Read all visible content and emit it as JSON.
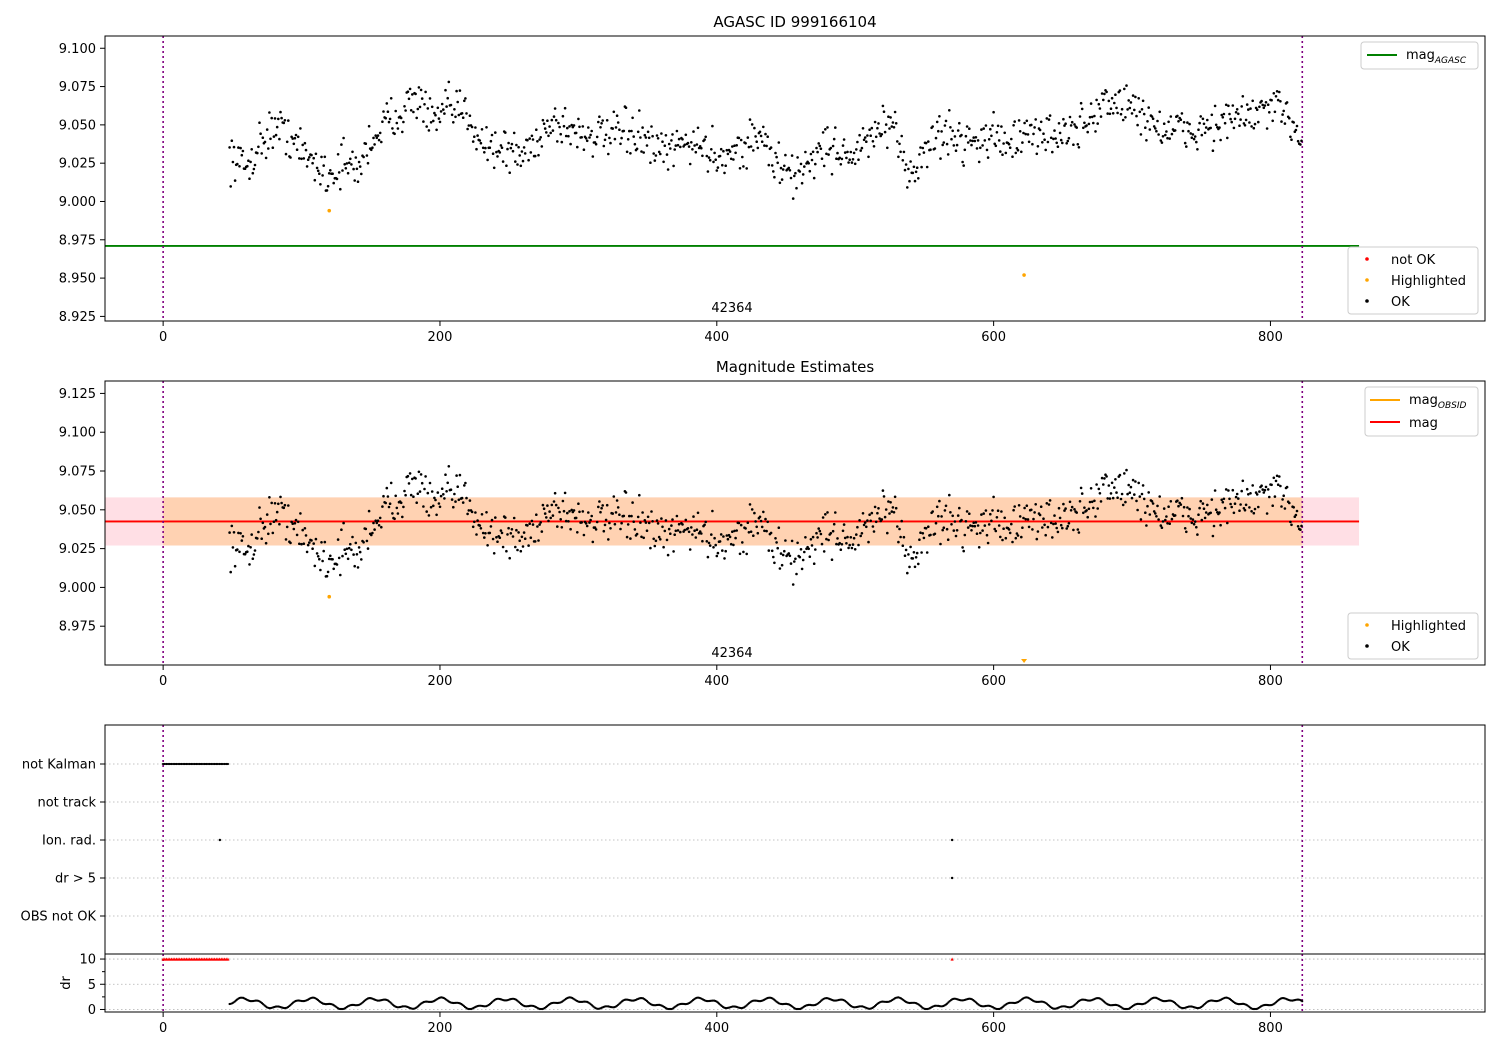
{
  "figure": {
    "ticks_x": [
      0,
      200,
      400,
      600,
      800
    ],
    "xlim": [
      -42,
      955
    ],
    "obs_start": 0,
    "obs_end": 823,
    "marker_color": "#800080"
  },
  "chart_data": [
    {
      "type": "scatter",
      "title": "AGASC ID 999166104",
      "ylim": [
        8.922,
        9.108
      ],
      "yticks": [
        "9.100",
        "9.075",
        "9.050",
        "9.025",
        "9.000",
        "8.975",
        "8.950",
        "8.925"
      ],
      "obsid_label": "42364",
      "agasc_mag": 8.971,
      "legend_lines": [
        {
          "label": "mag",
          "sub": "AGASC",
          "color": "#008000"
        }
      ],
      "legend_points": [
        {
          "label": "not OK",
          "color": "#ff0000"
        },
        {
          "label": "Highlighted",
          "color": "#ffa500"
        },
        {
          "label": "OK",
          "color": "#000000"
        }
      ],
      "highlighted": [
        {
          "x": 120,
          "y": 8.994
        },
        {
          "x": 622,
          "y": 8.952
        }
      ],
      "trend": [
        [
          48,
          9.03
        ],
        [
          60,
          9.022
        ],
        [
          70,
          9.038
        ],
        [
          80,
          9.048
        ],
        [
          90,
          9.045
        ],
        [
          100,
          9.032
        ],
        [
          110,
          9.025
        ],
        [
          120,
          9.017
        ],
        [
          130,
          9.025
        ],
        [
          140,
          9.02
        ],
        [
          150,
          9.04
        ],
        [
          160,
          9.05
        ],
        [
          175,
          9.062
        ],
        [
          185,
          9.068
        ],
        [
          195,
          9.05
        ],
        [
          205,
          9.06
        ],
        [
          220,
          9.058
        ],
        [
          230,
          9.04
        ],
        [
          240,
          9.035
        ],
        [
          260,
          9.03
        ],
        [
          280,
          9.052
        ],
        [
          300,
          9.045
        ],
        [
          320,
          9.042
        ],
        [
          340,
          9.045
        ],
        [
          360,
          9.03
        ],
        [
          380,
          9.04
        ],
        [
          400,
          9.03
        ],
        [
          420,
          9.035
        ],
        [
          430,
          9.045
        ],
        [
          440,
          9.028
        ],
        [
          455,
          9.015
        ],
        [
          470,
          9.03
        ],
        [
          480,
          9.036
        ],
        [
          500,
          9.03
        ],
        [
          520,
          9.05
        ],
        [
          530,
          9.04
        ],
        [
          540,
          9.018
        ],
        [
          560,
          9.045
        ],
        [
          580,
          9.04
        ],
        [
          600,
          9.042
        ],
        [
          620,
          9.04
        ],
        [
          640,
          9.045
        ],
        [
          660,
          9.045
        ],
        [
          680,
          9.065
        ],
        [
          700,
          9.062
        ],
        [
          710,
          9.055
        ],
        [
          720,
          9.048
        ],
        [
          740,
          9.045
        ],
        [
          760,
          9.05
        ],
        [
          780,
          9.055
        ],
        [
          800,
          9.06
        ],
        [
          815,
          9.055
        ],
        [
          823,
          9.038
        ]
      ]
    },
    {
      "type": "scatter",
      "title": "Magnitude Estimates",
      "ylim": [
        8.95,
        9.133
      ],
      "yticks": [
        "9.125",
        "9.100",
        "9.075",
        "9.050",
        "9.025",
        "9.000",
        "8.975"
      ],
      "obsid_label": "42364",
      "mag": 9.0425,
      "mag_obsid": 9.0425,
      "band_outer": [
        9.027,
        9.058
      ],
      "band_inner": [
        9.027,
        9.058
      ],
      "legend_lines": [
        {
          "label": "mag",
          "sub": "OBSID",
          "color": "#ffa500"
        },
        {
          "label": "mag",
          "sub": "",
          "color": "#ff0000"
        }
      ],
      "legend_points": [
        {
          "label": "Highlighted",
          "color": "#ffa500"
        },
        {
          "label": "OK",
          "color": "#000000"
        }
      ],
      "highlighted": [
        {
          "x": 120,
          "y": 8.994
        },
        {
          "x": 622,
          "y": 8.952,
          "arrow": true
        }
      ]
    },
    {
      "type": "scatter",
      "categories": [
        "not Kalman",
        "not track",
        "Ion. rad.",
        "dr > 5",
        "OBS not OK"
      ],
      "flags": {
        "not Kalman_range": [
          0,
          47
        ],
        "Ion. rad._points": [
          41,
          570
        ],
        "dr > 5_points": [
          570
        ]
      },
      "dr": {
        "ylabel": "dr",
        "ylim": [
          -0.5,
          11
        ],
        "yticks": [
          0,
          5,
          10
        ],
        "clipped_range": [
          0,
          47
        ],
        "clipped_extra": [
          570
        ],
        "clip_value": 10
      }
    }
  ]
}
